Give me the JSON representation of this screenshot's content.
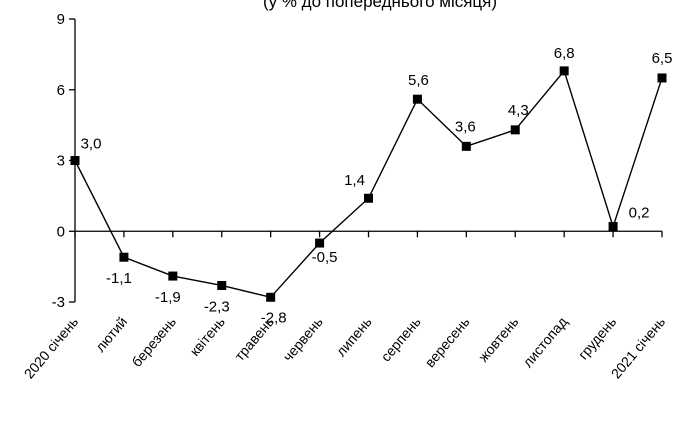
{
  "chart_data": {
    "type": "line",
    "title": "(у % до попереднього місяця)",
    "xlabel": "",
    "ylabel": "",
    "ylim": [
      -3,
      9
    ],
    "yticks": [
      "-3",
      "0",
      "3",
      "6",
      "9"
    ],
    "grid": false,
    "legend": "none",
    "categories": [
      "2020 січень",
      "лютий",
      "березень",
      "квітень",
      "травень",
      "червень",
      "липень",
      "серпень",
      "вересень",
      "жовтень",
      "листопад",
      "грудень",
      "2021 січень"
    ],
    "values": [
      3.0,
      -1.1,
      -1.9,
      -2.3,
      -2.8,
      -0.5,
      1.4,
      5.6,
      3.6,
      4.3,
      6.8,
      0.2,
      6.5
    ],
    "data_labels": [
      "3,0",
      "-1,1",
      "-1,9",
      "-2,3",
      "-2,8",
      "-0,5",
      "1,4",
      "5,6",
      "3,6",
      "4,3",
      "6,8",
      "0,2",
      "6,5"
    ],
    "line_color": "#000000",
    "marker_color": "#000000"
  }
}
